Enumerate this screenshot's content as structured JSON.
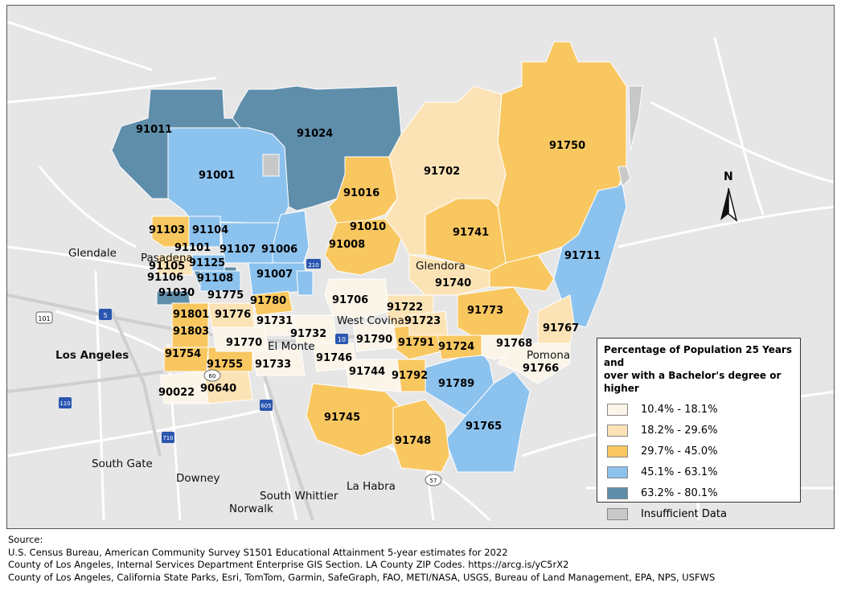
{
  "map": {
    "zip_codes": [
      "91011",
      "91024",
      "91001",
      "91750",
      "91702",
      "91016",
      "91010",
      "91008",
      "91741",
      "91711",
      "91103",
      "91104",
      "91101",
      "91107",
      "91006",
      "91105",
      "91125",
      "91106",
      "91108",
      "91007",
      "91030",
      "91775",
      "91780",
      "91740",
      "91706",
      "91722",
      "91773",
      "91801",
      "91776",
      "91731",
      "91723",
      "91767",
      "91803",
      "91770",
      "91732",
      "91790",
      "91791",
      "91724",
      "91768",
      "91754",
      "91755",
      "91733",
      "91746",
      "91744",
      "91792",
      "91789",
      "91766",
      "90022",
      "90640",
      "91745",
      "91748",
      "91765"
    ],
    "cities": {
      "glendale": "Glendale",
      "pasadena": "Pasadena",
      "glendora": "Glendora",
      "west_covina": "West Covina",
      "el_monte": "El Monte",
      "pomona": "Pomona",
      "los_angeles": "Los Angeles",
      "south_gate": "South Gate",
      "downey": "Downey",
      "south_whittier": "South Whittier",
      "norwalk": "Norwalk",
      "la_habra": "La Habra"
    },
    "highway_shields": [
      "101",
      "5",
      "210",
      "10",
      "60",
      "110",
      "605",
      "710",
      "57"
    ],
    "north_label": "N",
    "colors": {
      "class1": "#fbf5e9",
      "class2": "#fce3b6",
      "class3": "#f8c760",
      "class4": "#8cc2ee",
      "class5": "#5f8eab",
      "insufficient": "#c8c8c8"
    }
  },
  "legend": {
    "title_line1": "Percentage of Population 25 Years and",
    "title_line2": "over with a Bachelor's degree or higher",
    "items": [
      {
        "label": "10.4% - 18.1%"
      },
      {
        "label": "18.2% - 29.6%"
      },
      {
        "label": "29.7% - 45.0%"
      },
      {
        "label": "45.1% - 63.1%"
      },
      {
        "label": "63.2% - 80.1%"
      },
      {
        "label": "Insufficient Data"
      }
    ]
  },
  "source": {
    "heading": "Source:",
    "line1": "U.S. Census Bureau, American Community Survey S1501 Educational Attainment 5-year estimates for 2022",
    "line2": "County of Los Angeles, Internal Services Department Enterprise GIS Section. LA County ZIP Codes. https://arcg.is/yC5rX2",
    "line3": "County of Los Angeles, California State Parks, Esri, TomTom, Garmin, SafeGraph, FAO, METI/NASA, USGS, Bureau of Land Management, EPA, NPS, USFWS"
  }
}
